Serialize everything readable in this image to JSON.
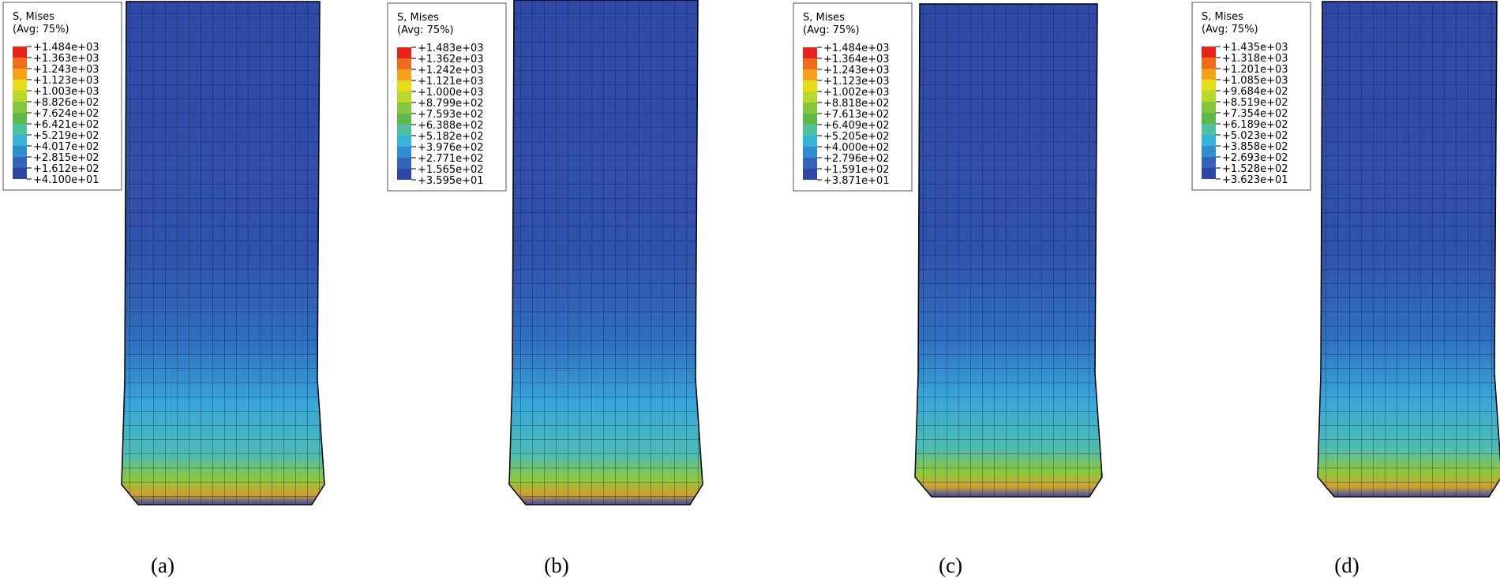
{
  "panels": [
    {
      "legend": {
        "title": "S, Mises",
        "subtitle": "(Avg: 75%)",
        "labels": [
          "+1.484e+03",
          "+1.363e+03",
          "+1.243e+03",
          "+1.123e+03",
          "+1.003e+03",
          "+8.826e+02",
          "+7.624e+02",
          "+6.421e+02",
          "+5.219e+02",
          "+4.017e+02",
          "+2.815e+02",
          "+1.612e+02",
          "+4.100e+01"
        ]
      },
      "caption": "(a)"
    },
    {
      "legend": {
        "title": "S, Mises",
        "subtitle": "(Avg: 75%)",
        "labels": [
          "+1.483e+03",
          "+1.362e+03",
          "+1.242e+03",
          "+1.121e+03",
          "+1.000e+03",
          "+8.799e+02",
          "+7.593e+02",
          "+6.388e+02",
          "+5.182e+02",
          "+3.976e+02",
          "+2.771e+02",
          "+1.565e+02",
          "+3.595e+01"
        ]
      },
      "caption": "(b)"
    },
    {
      "legend": {
        "title": "S, Mises",
        "subtitle": "(Avg: 75%)",
        "labels": [
          "+1.484e+03",
          "+1.364e+03",
          "+1.243e+03",
          "+1.123e+03",
          "+1.002e+03",
          "+8.818e+02",
          "+7.613e+02",
          "+6.409e+02",
          "+5.205e+02",
          "+4.000e+02",
          "+2.796e+02",
          "+1.591e+02",
          "+3.871e+01"
        ]
      },
      "caption": "(c)"
    },
    {
      "legend": {
        "title": "S, Mises",
        "subtitle": "(Avg: 75%)",
        "labels": [
          "+1.435e+03",
          "+1.318e+03",
          "+1.201e+03",
          "+1.085e+03",
          "+9.684e+02",
          "+8.519e+02",
          "+7.354e+02",
          "+6.189e+02",
          "+5.023e+02",
          "+3.858e+02",
          "+2.693e+02",
          "+1.528e+02",
          "+3.623e+01"
        ]
      },
      "caption": "(d)"
    }
  ]
}
